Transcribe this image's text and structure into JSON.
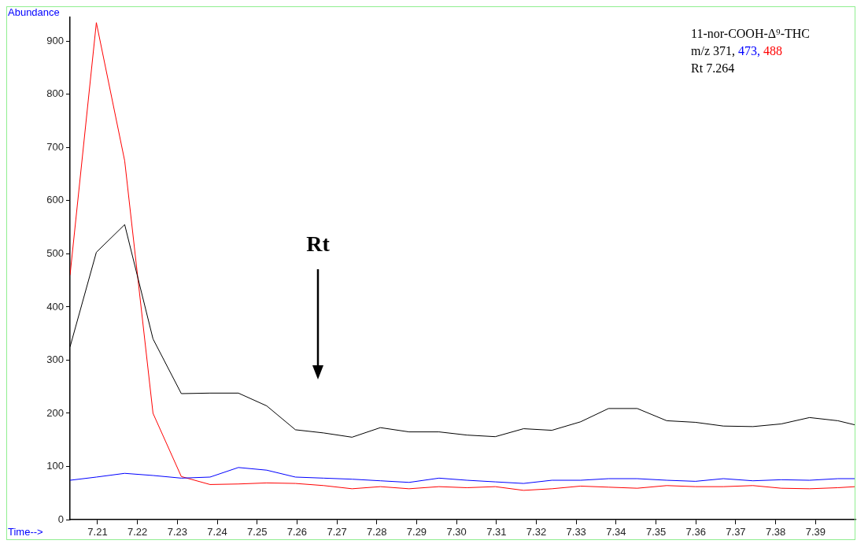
{
  "chart_data": {
    "type": "line",
    "title": "11-nor-COOH-Δ⁹-THC",
    "legend_title": "m/z",
    "xlabel": "Time-->",
    "ylabel": "Abundance",
    "x": [
      7.2031,
      7.2097,
      7.2168,
      7.2239,
      7.231,
      7.2382,
      7.2453,
      7.2524,
      7.2596,
      7.2667,
      7.2738,
      7.2809,
      7.2881,
      7.2956,
      7.3026,
      7.3097,
      7.3168,
      7.3239,
      7.3311,
      7.3381,
      7.3453,
      7.3527,
      7.3599,
      7.3669,
      7.3743,
      7.3814,
      7.3885,
      7.3956,
      7.4
    ],
    "series": [
      {
        "name": "371,",
        "color": "#000000",
        "values": [
          325,
          503,
          555,
          340,
          237,
          238,
          238,
          214,
          169,
          163,
          155,
          173,
          165,
          165,
          159,
          156,
          171,
          168,
          184,
          209,
          209,
          186,
          183,
          176,
          175,
          180,
          192,
          186,
          178
        ]
      },
      {
        "name": "473,",
        "color": "#0000ff",
        "values": [
          74,
          80,
          87,
          83,
          78,
          80,
          98,
          93,
          80,
          78,
          76,
          73,
          70,
          78,
          74,
          71,
          68,
          74,
          74,
          77,
          77,
          74,
          72,
          77,
          73,
          75,
          74,
          77,
          77
        ]
      },
      {
        "name": "488",
        "color": "#ff0000",
        "values": [
          460,
          935,
          675,
          200,
          81,
          66,
          67,
          69,
          68,
          64,
          58,
          62,
          58,
          62,
          60,
          62,
          55,
          58,
          63,
          61,
          59,
          64,
          62,
          62,
          64,
          59,
          58,
          60,
          62
        ]
      }
    ],
    "xlim": [
      7.2031,
      7.4
    ],
    "ylim": [
      0,
      945
    ],
    "xticks": [
      7.21,
      7.22,
      7.23,
      7.24,
      7.25,
      7.26,
      7.27,
      7.28,
      7.29,
      {
        "value": 7.3,
        "label": "7.30"
      },
      7.31,
      7.32,
      7.33,
      7.34,
      7.35,
      7.36,
      7.37,
      7.38,
      7.39
    ],
    "yticks": [
      0,
      100,
      200,
      300,
      400,
      500,
      600,
      700,
      800,
      900
    ],
    "grid": false,
    "legend": "top right",
    "marker": "none",
    "line_style": "solid",
    "annotations": [
      "Rt 7.264",
      "Rt"
    ]
  }
}
